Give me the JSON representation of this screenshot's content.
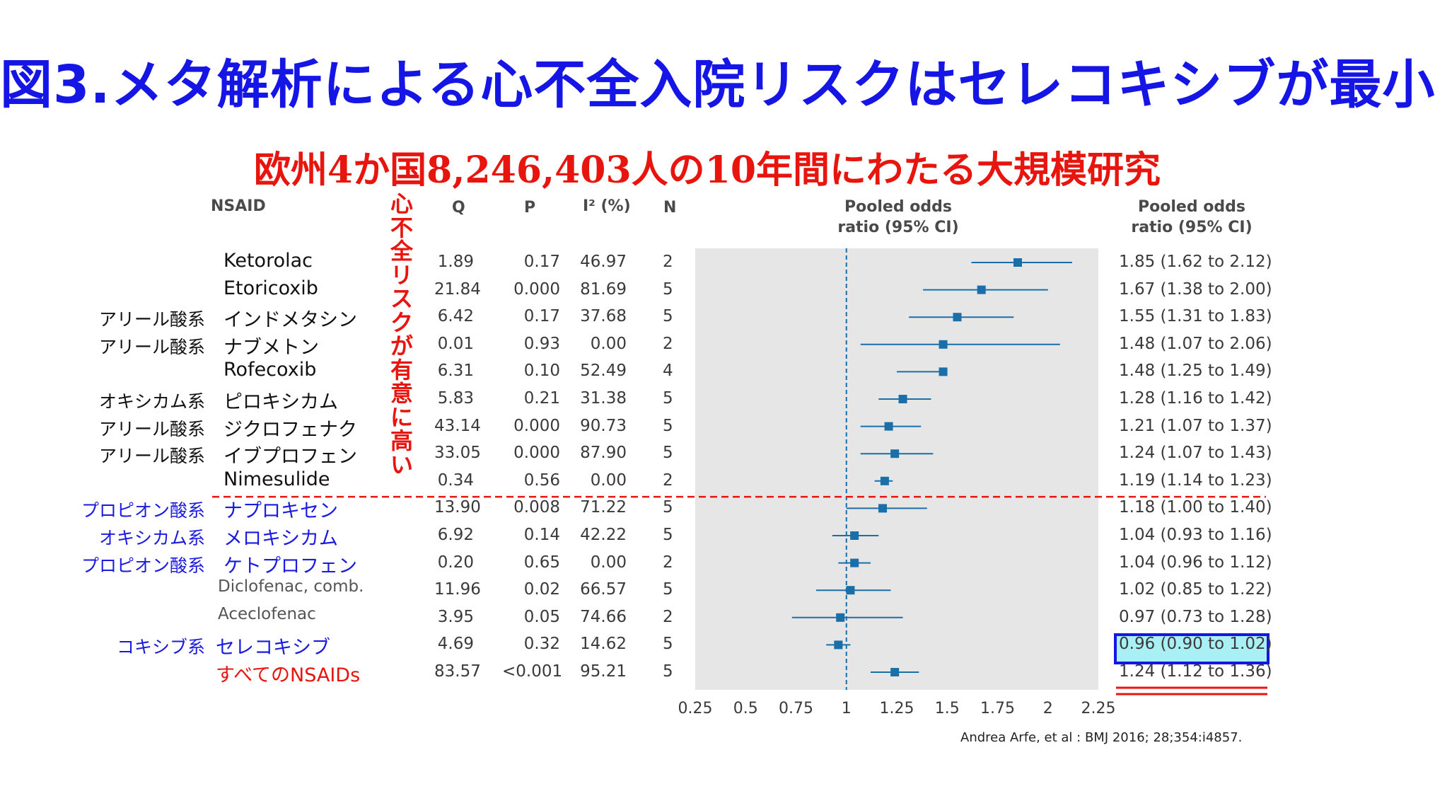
{
  "title": "図3.メタ解析による心不全入院リスクはセレコキシブが最小",
  "subtitle": "欧州4か国8,246,403人の10年間にわたる大規模研究",
  "vertical_label": [
    "心",
    "不",
    "全",
    "リ",
    "ス",
    "ク",
    "が",
    "有",
    "意",
    "に",
    "高",
    "い"
  ],
  "headers": {
    "nsaid": "NSAID",
    "q": "Q",
    "p": "P",
    "i2": "I² (%)",
    "n": "N",
    "pooled_line1": "Pooled odds",
    "pooled_line2": "ratio (95% CI)",
    "pooled_right_line1": "Pooled odds",
    "pooled_right_line2": "ratio (95% CI)"
  },
  "citation": "Andrea Arfe, et al : BMJ 2016; 28;354:i4857.",
  "colors": {
    "title": "#1515e6",
    "subtitle": "#e8150f",
    "marker": "#1a6fa8",
    "plot_bg": "#e6e6e6",
    "divider": "#e8150f"
  },
  "chart_data": {
    "type": "forest",
    "xaxis_ticks": [
      "0.25",
      "0.5",
      "0.75",
      "1",
      "1.25",
      "1.5",
      "1.75",
      "2",
      "2.25"
    ],
    "xlim": [
      0.25,
      2.25
    ],
    "reference_line": 1,
    "rows": [
      {
        "cls": "",
        "name": "Ketorolac",
        "style": "black",
        "q": "1.89",
        "p": "0.17",
        "i2": "46.97",
        "n": "2",
        "or": 1.85,
        "lo": 1.62,
        "hi": 2.12,
        "ci": "1.85 (1.62 to 2.12)"
      },
      {
        "cls": "",
        "name": "Etoricoxib",
        "style": "black",
        "q": "21.84",
        "p": "0.000",
        "i2": "81.69",
        "n": "5",
        "or": 1.67,
        "lo": 1.38,
        "hi": 2.0,
        "ci": "1.67 (1.38 to 2.00)"
      },
      {
        "cls": "アリール酸系",
        "cls_style": "black",
        "name": "インドメタシン",
        "style": "black",
        "q": "6.42",
        "p": "0.17",
        "i2": "37.68",
        "n": "5",
        "or": 1.55,
        "lo": 1.31,
        "hi": 1.83,
        "ci": "1.55 (1.31 to 1.83)"
      },
      {
        "cls": "アリール酸系",
        "cls_style": "black",
        "name": "ナブメトン",
        "style": "black",
        "q": "0.01",
        "p": "0.93",
        "i2": "0.00",
        "n": "2",
        "or": 1.48,
        "lo": 1.07,
        "hi": 2.06,
        "ci": "1.48 (1.07 to 2.06)"
      },
      {
        "cls": "",
        "name": "Rofecoxib",
        "style": "black",
        "q": "6.31",
        "p": "0.10",
        "i2": "52.49",
        "n": "4",
        "or": 1.48,
        "lo": 1.25,
        "hi": 1.49,
        "ci": "1.48 (1.25 to 1.49)"
      },
      {
        "cls": "オキシカム系",
        "cls_style": "black",
        "name": "ピロキシカム",
        "style": "black",
        "q": "5.83",
        "p": "0.21",
        "i2": "31.38",
        "n": "5",
        "or": 1.28,
        "lo": 1.16,
        "hi": 1.42,
        "ci": "1.28 (1.16 to 1.42)"
      },
      {
        "cls": "アリール酸系",
        "cls_style": "black",
        "name": "ジクロフェナク",
        "style": "black",
        "q": "43.14",
        "p": "0.000",
        "i2": "90.73",
        "n": "5",
        "or": 1.21,
        "lo": 1.07,
        "hi": 1.37,
        "ci": "1.21 (1.07 to 1.37)"
      },
      {
        "cls": "アリール酸系",
        "cls_style": "black",
        "name": "イブプロフェン",
        "style": "black",
        "q": "33.05",
        "p": "0.000",
        "i2": "87.90",
        "n": "5",
        "or": 1.24,
        "lo": 1.07,
        "hi": 1.43,
        "ci": "1.24 (1.07 to 1.43)"
      },
      {
        "cls": "",
        "name": "Nimesulide",
        "style": "black",
        "q": "0.34",
        "p": "0.56",
        "i2": "0.00",
        "n": "2",
        "or": 1.19,
        "lo": 1.14,
        "hi": 1.23,
        "ci": "1.19 (1.14 to 1.23)"
      },
      {
        "cls": "プロピオン酸系",
        "cls_style": "blue",
        "name": "ナプロキセン",
        "style": "blue",
        "q": "13.90",
        "p": "0.008",
        "i2": "71.22",
        "n": "5",
        "or": 1.18,
        "lo": 1.0,
        "hi": 1.4,
        "ci": "1.18 (1.00 to 1.40)"
      },
      {
        "cls": "オキシカム系",
        "cls_style": "blue",
        "name": "メロキシカム",
        "style": "blue",
        "q": "6.92",
        "p": "0.14",
        "i2": "42.22",
        "n": "5",
        "or": 1.04,
        "lo": 0.93,
        "hi": 1.16,
        "ci": "1.04 (0.93 to 1.16)"
      },
      {
        "cls": "プロピオン酸系",
        "cls_style": "blue",
        "name": "ケトプロフェン",
        "style": "blue",
        "q": "0.20",
        "p": "0.65",
        "i2": "0.00",
        "n": "2",
        "or": 1.04,
        "lo": 0.96,
        "hi": 1.12,
        "ci": "1.04 (0.96 to 1.12)"
      },
      {
        "cls": "",
        "name": "Diclofenac, comb.",
        "style": "gray",
        "q": "11.96",
        "p": "0.02",
        "i2": "66.57",
        "n": "5",
        "or": 1.02,
        "lo": 0.85,
        "hi": 1.22,
        "ci": "1.02 (0.85 to 1.22)"
      },
      {
        "cls": "",
        "name": "Aceclofenac",
        "style": "gray",
        "q": "3.95",
        "p": "0.05",
        "i2": "74.66",
        "n": "2",
        "or": 0.97,
        "lo": 0.73,
        "hi": 1.28,
        "ci": "0.97 (0.73 to 1.28)"
      },
      {
        "cls": "コキシブ系",
        "cls_style": "blue",
        "name": "セレコキシブ",
        "style": "blue",
        "q": "4.69",
        "p": "0.32",
        "i2": "14.62",
        "n": "5",
        "or": 0.96,
        "lo": 0.9,
        "hi": 1.02,
        "ci": "0.96 (0.90 to 1.02)"
      },
      {
        "cls": "",
        "name": "すべてのNSAIDs",
        "style": "red",
        "q": "83.57",
        "p": "<0.001",
        "i2": "95.21",
        "n": "5",
        "or": 1.24,
        "lo": 1.12,
        "hi": 1.36,
        "ci": "1.24 (1.12 to 1.36)"
      }
    ]
  }
}
